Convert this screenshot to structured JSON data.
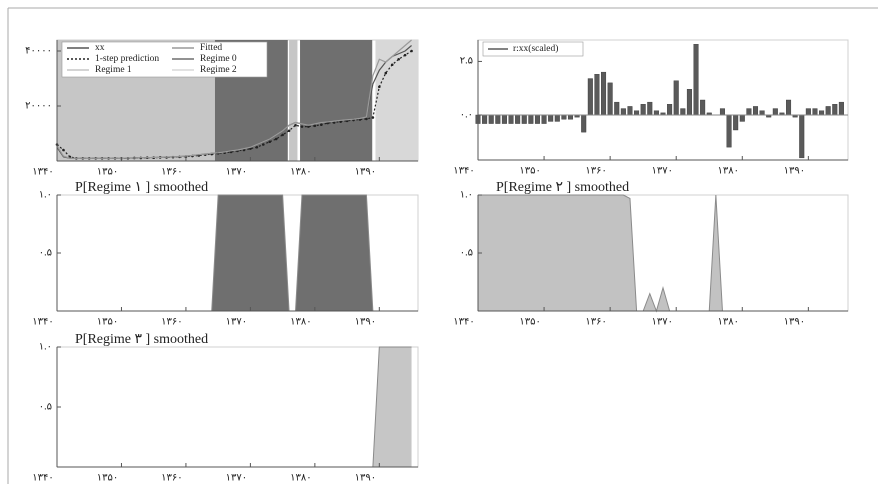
{
  "chart_data": [
    {
      "type": "line",
      "x": [
        1340,
        1341,
        1342,
        1343,
        1344,
        1345,
        1346,
        1347,
        1348,
        1349,
        1350,
        1351,
        1352,
        1353,
        1354,
        1355,
        1356,
        1357,
        1358,
        1359,
        1360,
        1361,
        1362,
        1363,
        1364,
        1365,
        1366,
        1367,
        1368,
        1369,
        1370,
        1371,
        1372,
        1373,
        1374,
        1375,
        1376,
        1377,
        1378,
        1379,
        1380,
        1381,
        1382,
        1383,
        1384,
        1385,
        1386,
        1387,
        1388,
        1389,
        1390,
        1391,
        1392,
        1393,
        1394,
        1395
      ],
      "series": [
        {
          "name": "xx",
          "color": "#555555",
          "style": "solid",
          "values": [
            5000,
            1500,
            1000,
            1000,
            1000,
            1000,
            1000,
            1000,
            1000,
            1000,
            1000,
            1100,
            1100,
            1200,
            1200,
            1300,
            1300,
            1400,
            1500,
            1600,
            1800,
            2000,
            2300,
            2500,
            2800,
            3000,
            3300,
            3700,
            4000,
            4500,
            5000,
            6000,
            7000,
            8000,
            9500,
            11000,
            13000,
            14000,
            13500,
            13000,
            13500,
            14000,
            14200,
            14500,
            14800,
            15000,
            15200,
            15500,
            16000,
            28000,
            33000,
            36000,
            38000,
            39000,
            40000,
            42000
          ]
        },
        {
          "name": "1-step prediction",
          "color": "#222222",
          "style": "dotted",
          "values": [
            6000,
            4000,
            1500,
            1000,
            1000,
            1000,
            1000,
            1000,
            1000,
            1000,
            1000,
            1000,
            1100,
            1100,
            1200,
            1200,
            1300,
            1300,
            1400,
            1500,
            1600,
            1800,
            2000,
            2300,
            2500,
            2800,
            3000,
            3300,
            3700,
            4000,
            4500,
            5000,
            6000,
            7000,
            8000,
            9500,
            11000,
            13000,
            12500,
            12500,
            12800,
            13200,
            13800,
            14000,
            14300,
            14600,
            14900,
            15100,
            15300,
            15800,
            27000,
            32000,
            35000,
            37000,
            38500,
            40000
          ]
        },
        {
          "name": "Fitted",
          "color": "#9a9a9a",
          "style": "solid",
          "values": [
            5500,
            1800,
            1000,
            1000,
            1000,
            1000,
            1000,
            1000,
            1000,
            1000,
            1000,
            1100,
            1100,
            1200,
            1200,
            1300,
            1300,
            1400,
            1500,
            1600,
            1800,
            2000,
            2300,
            2500,
            2800,
            3000,
            3300,
            3700,
            4000,
            4500,
            5000,
            6000,
            7000,
            8000,
            9500,
            11000,
            13000,
            14000,
            13500,
            13000,
            13500,
            14000,
            14200,
            14500,
            14800,
            15000,
            15200,
            15500,
            16000,
            31000,
            37000,
            36000,
            38000,
            40000,
            42000,
            44000
          ]
        }
      ],
      "regimes": [
        {
          "name": "Regime 1",
          "color": "#c6c6c6",
          "spans": [
            [
              1340,
              1364.5
            ],
            [
              1376,
              1377.3
            ]
          ]
        },
        {
          "name": "Regime 0",
          "color": "#6f6f6f",
          "spans": [
            [
              1364.5,
              1375.8
            ],
            [
              1377.7,
              1388.9
            ]
          ]
        },
        {
          "name": "Regime 2",
          "color": "#d8d8d8",
          "spans": [
            [
              1389.4,
              1396
            ]
          ]
        }
      ],
      "xlim": [
        1340,
        1396
      ],
      "xticks": [
        {
          "value": 1340,
          "label": "۱۳۴۰"
        },
        {
          "value": 1350,
          "label": "۱۳۵۰"
        },
        {
          "value": 1360,
          "label": "۱۳۶۰"
        },
        {
          "value": 1370,
          "label": "۱۳۷۰"
        },
        {
          "value": 1380,
          "label": "۱۳۸۰"
        },
        {
          "value": 1390,
          "label": "۱۳۹۰"
        }
      ],
      "ylim": [
        0,
        44000
      ],
      "yticks": [
        {
          "value": 20000,
          "label": "۲۰۰۰۰"
        },
        {
          "value": 40000,
          "label": "۴۰۰۰۰"
        }
      ]
    },
    {
      "type": "bar",
      "x": [
        1340,
        1341,
        1342,
        1343,
        1344,
        1345,
        1346,
        1347,
        1348,
        1349,
        1350,
        1351,
        1352,
        1353,
        1354,
        1355,
        1356,
        1357,
        1358,
        1359,
        1360,
        1361,
        1362,
        1363,
        1364,
        1365,
        1366,
        1367,
        1368,
        1369,
        1370,
        1371,
        1372,
        1373,
        1374,
        1375,
        1376,
        1377,
        1378,
        1379,
        1380,
        1381,
        1382,
        1383,
        1384,
        1385,
        1386,
        1387,
        1388,
        1389,
        1390,
        1391,
        1392,
        1393,
        1394,
        1395
      ],
      "series": [
        {
          "name": "r:xx(scaled)",
          "color": "#5a5a5a",
          "values": [
            -0.4,
            -0.4,
            -0.4,
            -0.4,
            -0.4,
            -0.4,
            -0.4,
            -0.4,
            -0.4,
            -0.4,
            -0.4,
            -0.3,
            -0.3,
            -0.2,
            -0.2,
            -0.1,
            -0.8,
            1.7,
            1.9,
            2.0,
            1.5,
            0.6,
            0.3,
            0.4,
            0.2,
            0.5,
            0.6,
            0.2,
            0.1,
            0.5,
            1.6,
            0.3,
            1.2,
            3.3,
            0.7,
            0.1,
            0,
            0.3,
            -1.5,
            -0.7,
            -0.3,
            0.3,
            0.4,
            0.2,
            -0.1,
            0.3,
            0.1,
            0.7,
            -0.1,
            -2.0,
            0.3,
            0.3,
            0.2,
            0.4,
            0.5,
            0.6
          ]
        }
      ],
      "xlim": [
        1340,
        1396
      ],
      "xticks": [
        {
          "value": 1340,
          "label": "۱۳۴۰"
        },
        {
          "value": 1350,
          "label": "۱۳۵۰"
        },
        {
          "value": 1360,
          "label": "۱۳۶۰"
        },
        {
          "value": 1370,
          "label": "۱۳۷۰"
        },
        {
          "value": 1380,
          "label": "۱۳۸۰"
        },
        {
          "value": 1390,
          "label": "۱۳۹۰"
        }
      ],
      "ylim": [
        -2.1,
        3.5
      ],
      "yticks": [
        {
          "value": 0,
          "label": "۰.۰"
        },
        {
          "value": 2.5,
          "label": "۲.۵"
        }
      ]
    },
    {
      "type": "area",
      "title": "P[Regime ۱ ] smoothed",
      "color": "#6f6f6f",
      "x": [
        1340,
        1341,
        1342,
        1343,
        1344,
        1345,
        1346,
        1347,
        1348,
        1349,
        1350,
        1351,
        1352,
        1353,
        1354,
        1355,
        1356,
        1357,
        1358,
        1359,
        1360,
        1361,
        1362,
        1363,
        1364,
        1365,
        1366,
        1367,
        1368,
        1369,
        1370,
        1371,
        1372,
        1373,
        1374,
        1375,
        1376,
        1377,
        1378,
        1379,
        1380,
        1381,
        1382,
        1383,
        1384,
        1385,
        1386,
        1387,
        1388,
        1389,
        1390,
        1391,
        1392,
        1393,
        1394,
        1395
      ],
      "values": [
        0,
        0,
        0,
        0,
        0,
        0,
        0,
        0,
        0,
        0,
        0,
        0,
        0,
        0,
        0,
        0,
        0,
        0,
        0,
        0,
        0,
        0,
        0,
        0,
        0,
        1,
        1,
        1,
        1,
        1,
        1,
        1,
        1,
        1,
        1,
        1,
        0,
        0,
        1,
        1,
        1,
        1,
        1,
        1,
        1,
        1,
        1,
        1,
        1,
        0,
        0,
        0,
        0,
        0,
        0,
        0
      ],
      "xlim": [
        1340,
        1396
      ],
      "xticks": [
        {
          "value": 1340,
          "label": "۱۳۴۰"
        },
        {
          "value": 1350,
          "label": "۱۳۵۰"
        },
        {
          "value": 1360,
          "label": "۱۳۶۰"
        },
        {
          "value": 1370,
          "label": "۱۳۷۰"
        },
        {
          "value": 1380,
          "label": "۱۳۸۰"
        },
        {
          "value": 1390,
          "label": "۱۳۹۰"
        }
      ],
      "ylim": [
        0,
        1
      ],
      "yticks": [
        {
          "value": 0.5,
          "label": "۰.۵"
        },
        {
          "value": 1,
          "label": "۱.۰"
        }
      ]
    },
    {
      "type": "area",
      "title": "P[Regime ۲ ] smoothed",
      "color": "#c2c2c2",
      "x": [
        1340,
        1341,
        1342,
        1343,
        1344,
        1345,
        1346,
        1347,
        1348,
        1349,
        1350,
        1351,
        1352,
        1353,
        1354,
        1355,
        1356,
        1357,
        1358,
        1359,
        1360,
        1361,
        1362,
        1363,
        1364,
        1365,
        1366,
        1367,
        1368,
        1369,
        1370,
        1371,
        1372,
        1373,
        1374,
        1375,
        1376,
        1377,
        1378,
        1379,
        1380,
        1381,
        1382,
        1383,
        1384,
        1385,
        1386,
        1387,
        1388,
        1389,
        1390,
        1391,
        1392,
        1393,
        1394,
        1395
      ],
      "values": [
        1,
        1,
        1,
        1,
        1,
        1,
        1,
        1,
        1,
        1,
        1,
        1,
        1,
        1,
        1,
        1,
        1,
        1,
        1,
        1,
        1,
        1,
        1,
        0.97,
        0,
        0,
        0.15,
        0,
        0.2,
        0,
        0,
        0,
        0,
        0,
        0,
        0,
        1,
        0,
        0,
        0,
        0,
        0,
        0,
        0,
        0,
        0,
        0,
        0,
        0,
        0,
        0,
        0,
        0,
        0,
        0,
        0
      ],
      "xlim": [
        1340,
        1396
      ],
      "xticks": [
        {
          "value": 1340,
          "label": "۱۳۴۰"
        },
        {
          "value": 1350,
          "label": "۱۳۵۰"
        },
        {
          "value": 1360,
          "label": "۱۳۶۰"
        },
        {
          "value": 1370,
          "label": "۱۳۷۰"
        },
        {
          "value": 1380,
          "label": "۱۳۸۰"
        },
        {
          "value": 1390,
          "label": "۱۳۹۰"
        }
      ],
      "ylim": [
        0,
        1
      ],
      "yticks": [
        {
          "value": 0.5,
          "label": "۰.۵"
        },
        {
          "value": 1,
          "label": "۱.۰"
        }
      ]
    },
    {
      "type": "area",
      "title": "P[Regime ۳ ] smoothed",
      "color": "#c6c6c6",
      "x": [
        1340,
        1341,
        1342,
        1343,
        1344,
        1345,
        1346,
        1347,
        1348,
        1349,
        1350,
        1351,
        1352,
        1353,
        1354,
        1355,
        1356,
        1357,
        1358,
        1359,
        1360,
        1361,
        1362,
        1363,
        1364,
        1365,
        1366,
        1367,
        1368,
        1369,
        1370,
        1371,
        1372,
        1373,
        1374,
        1375,
        1376,
        1377,
        1378,
        1379,
        1380,
        1381,
        1382,
        1383,
        1384,
        1385,
        1386,
        1387,
        1388,
        1389,
        1390,
        1391,
        1392,
        1393,
        1394,
        1395
      ],
      "values": [
        0,
        0,
        0,
        0,
        0,
        0,
        0,
        0,
        0,
        0,
        0,
        0,
        0,
        0,
        0,
        0,
        0,
        0,
        0,
        0,
        0,
        0,
        0,
        0,
        0,
        0,
        0,
        0,
        0,
        0,
        0,
        0,
        0,
        0,
        0,
        0,
        0,
        0,
        0,
        0,
        0,
        0,
        0,
        0,
        0,
        0,
        0,
        0,
        0,
        0,
        1,
        1,
        1,
        1,
        1,
        1
      ],
      "xlim": [
        1340,
        1396
      ],
      "xticks": [
        {
          "value": 1340,
          "label": "۱۳۴۰"
        },
        {
          "value": 1350,
          "label": "۱۳۵۰"
        },
        {
          "value": 1360,
          "label": "۱۳۶۰"
        },
        {
          "value": 1370,
          "label": "۱۳۷۰"
        },
        {
          "value": 1380,
          "label": "۱۳۸۰"
        },
        {
          "value": 1390,
          "label": "۱۳۹۰"
        }
      ],
      "ylim": [
        0,
        1
      ],
      "yticks": [
        {
          "value": 0.5,
          "label": "۰.۵"
        },
        {
          "value": 1,
          "label": "۱.۰"
        }
      ]
    }
  ]
}
